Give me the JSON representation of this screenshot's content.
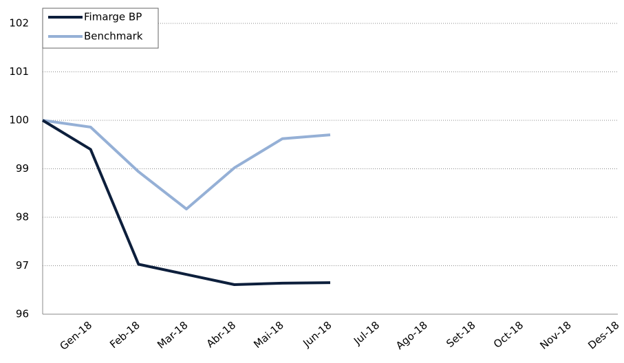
{
  "chart_data": {
    "type": "line",
    "categories": [
      null,
      "Gen-18",
      "Feb-18",
      "Mar-18",
      "Abr-18",
      "Mai-18",
      "Jun-18",
      "Jul-18",
      "Ago-18",
      "Set-18",
      "Oct-18",
      "Nov-18",
      "Des-18"
    ],
    "series": [
      {
        "name": "Fimarge BP",
        "color": "#0d1f3c",
        "values": [
          100,
          99.4,
          97.03,
          96.82,
          96.61,
          96.64,
          96.65,
          null,
          null,
          null,
          null,
          null,
          null
        ]
      },
      {
        "name": "Benchmark",
        "color": "#95b0d6",
        "values": [
          100,
          99.86,
          98.94,
          98.17,
          99.02,
          99.62,
          99.7,
          null,
          null,
          null,
          null,
          null,
          null
        ]
      }
    ],
    "ylim": [
      96,
      102
    ],
    "yticks": [
      96,
      97,
      98,
      99,
      100,
      101,
      102
    ],
    "grid": true,
    "legend": "top-left"
  }
}
